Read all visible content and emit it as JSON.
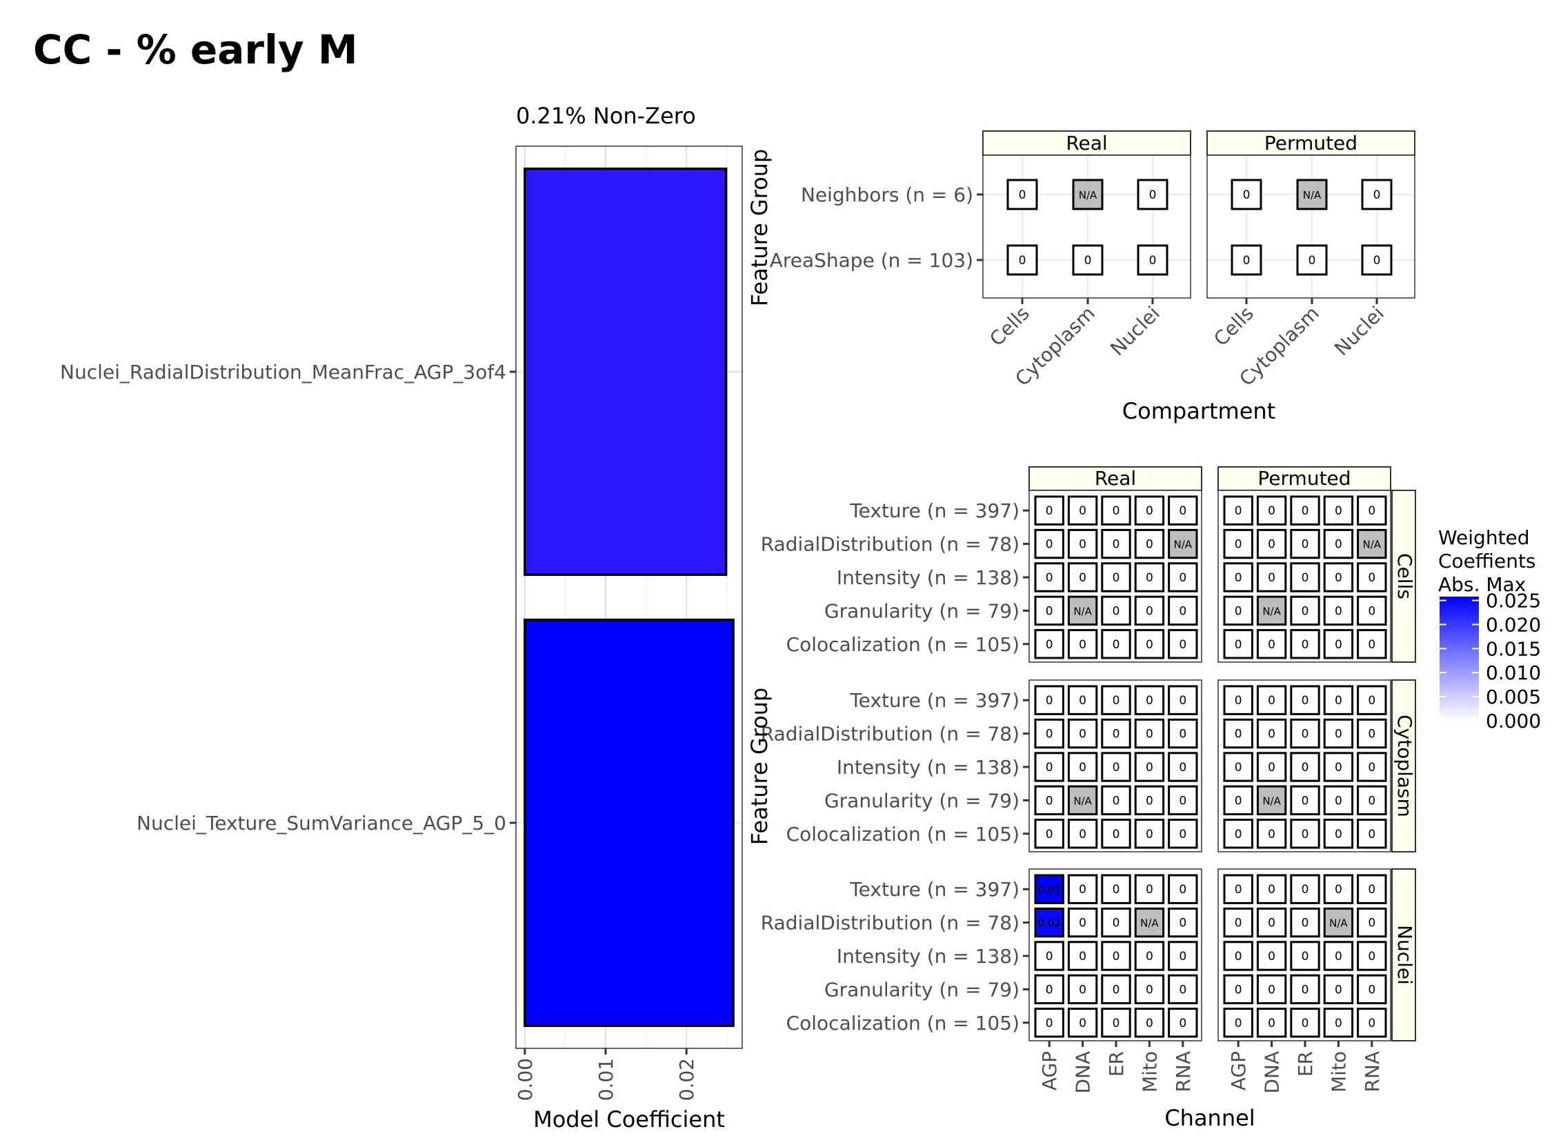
{
  "page_title": "CC - % early M",
  "chart_data": [
    {
      "type": "bar",
      "orientation": "horizontal",
      "subtitle": "0.21% Non-Zero",
      "xlabel": "Model Coefficient",
      "ylabel": "",
      "categories": [
        "Nuclei_Texture_SumVariance_AGP_5_0",
        "Nuclei_RadialDistribution_MeanFrac_AGP_3of4"
      ],
      "values": [
        0.0258,
        0.0249
      ],
      "fill_colors": [
        "#0000ff",
        "#2a17ff"
      ],
      "xlim": [
        -0.0011,
        0.0269
      ],
      "xticks": [
        0.0,
        0.01,
        0.02
      ],
      "xtick_labels": [
        "0.00",
        "0.01",
        "0.02"
      ],
      "grid": true
    },
    {
      "type": "heatmap",
      "ylabel": "Feature Group",
      "xlabel": "Compartment",
      "facets": [
        "Real",
        "Permuted"
      ],
      "columns": [
        "Cells",
        "Cytoplasm",
        "Nuclei"
      ],
      "rows": [
        "Neighbors (n = 6)",
        "AreaShape (n = 103)"
      ],
      "panels": [
        {
          "facet": "Real",
          "cells": [
            [
              "0",
              "N/A",
              "0"
            ],
            [
              "0",
              "0",
              "0"
            ]
          ]
        },
        {
          "facet": "Permuted",
          "cells": [
            [
              "0",
              "N/A",
              "0"
            ],
            [
              "0",
              "0",
              "0"
            ]
          ]
        }
      ]
    },
    {
      "type": "heatmap",
      "ylabel": "Feature Group",
      "xlabel": "Channel",
      "facets_x": [
        "Real",
        "Permuted"
      ],
      "facets_y": [
        "Cells",
        "Cytoplasm",
        "Nuclei"
      ],
      "columns": [
        "AGP",
        "DNA",
        "ER",
        "Mito",
        "RNA"
      ],
      "rows": [
        "Texture (n = 397)",
        "RadialDistribution (n = 78)",
        "Intensity (n = 138)",
        "Granularity (n = 79)",
        "Colocalization (n = 105)"
      ],
      "panels": [
        {
          "row_facet": "Cells",
          "col_facet": "Real",
          "cells": [
            [
              "0",
              "0",
              "0",
              "0",
              "0"
            ],
            [
              "0",
              "0",
              "0",
              "0",
              "N/A"
            ],
            [
              "0",
              "0",
              "0",
              "0",
              "0"
            ],
            [
              "0",
              "N/A",
              "0",
              "0",
              "0"
            ],
            [
              "0",
              "0",
              "0",
              "0",
              "0"
            ]
          ]
        },
        {
          "row_facet": "Cells",
          "col_facet": "Permuted",
          "cells": [
            [
              "0",
              "0",
              "0",
              "0",
              "0"
            ],
            [
              "0",
              "0",
              "0",
              "0",
              "N/A"
            ],
            [
              "0",
              "0",
              "0",
              "0",
              "0"
            ],
            [
              "0",
              "N/A",
              "0",
              "0",
              "0"
            ],
            [
              "0",
              "0",
              "0",
              "0",
              "0"
            ]
          ]
        },
        {
          "row_facet": "Cytoplasm",
          "col_facet": "Real",
          "cells": [
            [
              "0",
              "0",
              "0",
              "0",
              "0"
            ],
            [
              "0",
              "0",
              "0",
              "0",
              "0"
            ],
            [
              "0",
              "0",
              "0",
              "0",
              "0"
            ],
            [
              "0",
              "N/A",
              "0",
              "0",
              "0"
            ],
            [
              "0",
              "0",
              "0",
              "0",
              "0"
            ]
          ]
        },
        {
          "row_facet": "Cytoplasm",
          "col_facet": "Permuted",
          "cells": [
            [
              "0",
              "0",
              "0",
              "0",
              "0"
            ],
            [
              "0",
              "0",
              "0",
              "0",
              "0"
            ],
            [
              "0",
              "0",
              "0",
              "0",
              "0"
            ],
            [
              "0",
              "N/A",
              "0",
              "0",
              "0"
            ],
            [
              "0",
              "0",
              "0",
              "0",
              "0"
            ]
          ]
        },
        {
          "row_facet": "Nuclei",
          "col_facet": "Real",
          "cells": [
            [
              "0.03",
              "0",
              "0",
              "0",
              "0"
            ],
            [
              "0.02",
              "0",
              "0",
              "N/A",
              "0"
            ],
            [
              "0",
              "0",
              "0",
              "0",
              "0"
            ],
            [
              "0",
              "0",
              "0",
              "0",
              "0"
            ],
            [
              "0",
              "0",
              "0",
              "0",
              "0"
            ]
          ]
        },
        {
          "row_facet": "Nuclei",
          "col_facet": "Permuted",
          "cells": [
            [
              "0",
              "0",
              "0",
              "0",
              "0"
            ],
            [
              "0",
              "0",
              "0",
              "N/A",
              "0"
            ],
            [
              "0",
              "0",
              "0",
              "0",
              "0"
            ],
            [
              "0",
              "0",
              "0",
              "0",
              "0"
            ],
            [
              "0",
              "0",
              "0",
              "0",
              "0"
            ]
          ]
        }
      ],
      "cell_values": {
        "Nuclei|Real|Texture (n = 397)|AGP": 0.0258,
        "Nuclei|Real|RadialDistribution (n = 78)|AGP": 0.0249
      },
      "na_color": "#bebebe",
      "legend": {
        "title": [
          "Weighted",
          "Coeffients",
          "Abs. Max"
        ],
        "ticks": [
          0.025,
          0.02,
          0.015,
          0.01,
          0.005,
          0.0
        ],
        "tick_labels": [
          "0.025",
          "0.020",
          "0.015",
          "0.010",
          "0.005",
          "0.000"
        ],
        "range": [
          0,
          0.0258
        ],
        "color_low": "#ffffff",
        "color_high": "#0000ff",
        "placement": "right"
      }
    }
  ]
}
